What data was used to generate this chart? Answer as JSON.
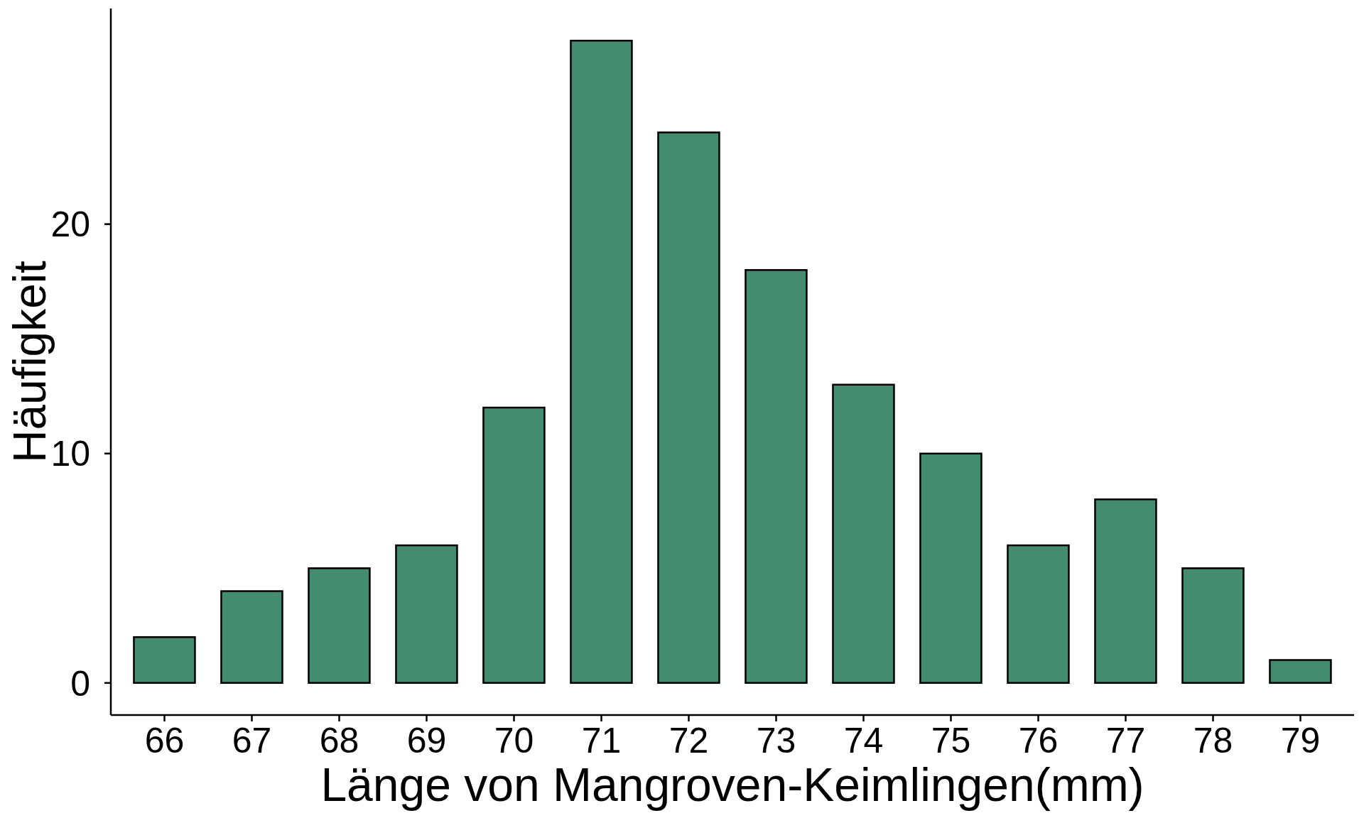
{
  "chart_data": {
    "type": "bar",
    "xlabel": "Länge von Mangroven-Keimlingen(mm)",
    "ylabel": "Häufigkeit",
    "categories": [
      "66",
      "67",
      "68",
      "69",
      "70",
      "71",
      "72",
      "73",
      "74",
      "75",
      "76",
      "77",
      "78",
      "79"
    ],
    "values": [
      2,
      4,
      5,
      6,
      12,
      28,
      24,
      18,
      13,
      10,
      6,
      8,
      5,
      1
    ],
    "color": "#438c6f",
    "ylim": [
      -1.4,
      29.4
    ],
    "yticks": [
      0,
      10,
      20
    ]
  }
}
